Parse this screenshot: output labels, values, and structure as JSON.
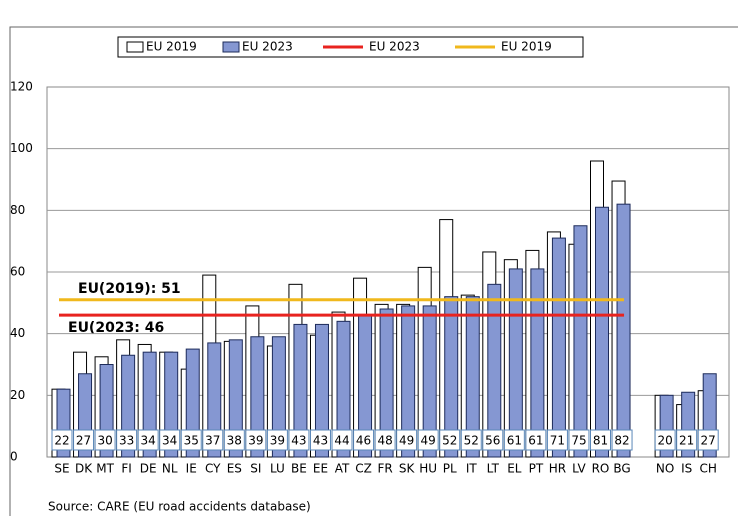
{
  "chart_data": {
    "type": "bar",
    "categories": [
      "SE",
      "DK",
      "MT",
      "FI",
      "DE",
      "NL",
      "IE",
      "CY",
      "ES",
      "SI",
      "LU",
      "BE",
      "EE",
      "AT",
      "CZ",
      "FR",
      "SK",
      "HU",
      "PL",
      "IT",
      "LT",
      "EL",
      "PT",
      "HR",
      "LV",
      "RO",
      "BG",
      null,
      "NO",
      "IS",
      "CH"
    ],
    "series": [
      {
        "name": "EU 2019",
        "color": "#ffffff",
        "values": [
          22,
          34,
          32.5,
          38,
          36.5,
          34,
          28.5,
          59,
          37.5,
          49,
          36,
          56,
          39.5,
          47,
          58,
          49.5,
          49.5,
          61.5,
          77,
          52.5,
          66.5,
          64,
          67,
          73,
          69,
          96,
          89.5,
          null,
          20,
          17,
          21.5
        ]
      },
      {
        "name": "EU 2023",
        "color": "#8597d2",
        "values": [
          22,
          27,
          30,
          33,
          34,
          34,
          35,
          37,
          38,
          39,
          39,
          43,
          43,
          44,
          46,
          48,
          49,
          49,
          52,
          52,
          56,
          61,
          61,
          71,
          75,
          81,
          82,
          null,
          20,
          21,
          27
        ]
      }
    ],
    "lines": [
      {
        "name": "EU 2023",
        "color": "#e8231f",
        "value": 46
      },
      {
        "name": "EU 2019",
        "color": "#f0b81c",
        "value": 51
      }
    ],
    "annotations": [
      "EU(2019): 51",
      "EU(2023: 46"
    ],
    "source": "Source: CARE (EU road accidents database)",
    "ylim": [
      0,
      120
    ],
    "yticks": [
      0,
      20,
      40,
      60,
      80,
      100,
      120
    ],
    "grid": true
  }
}
